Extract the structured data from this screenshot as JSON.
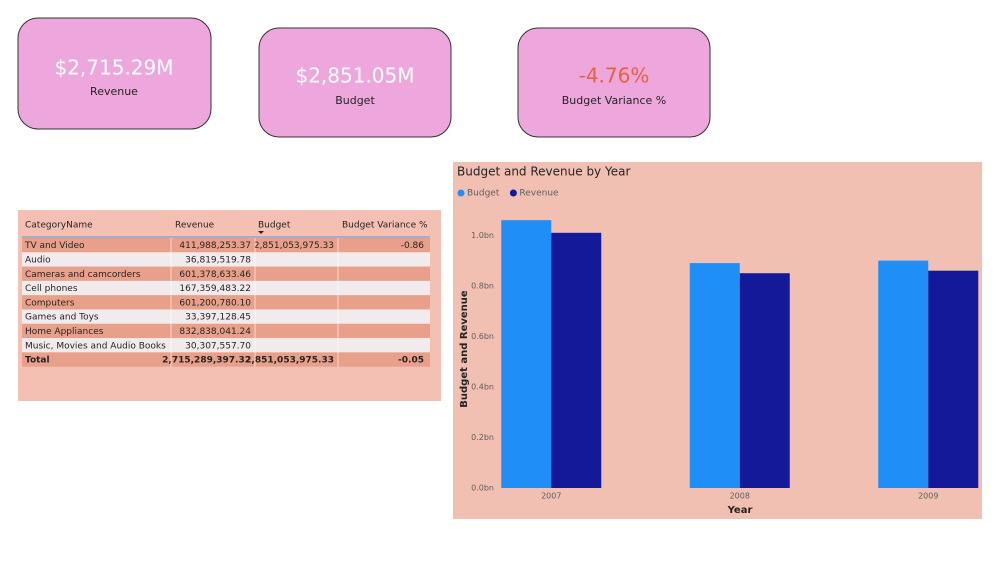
{
  "cards": [
    {
      "value": "$2,715.29M",
      "label": "Revenue"
    },
    {
      "value": "$2,851.05M",
      "label": "Budget"
    },
    {
      "value": "-4.76%",
      "label": "Budget Variance %"
    }
  ],
  "table": {
    "columns": [
      "CategoryName",
      "Revenue",
      "Budget",
      "Budget Variance %"
    ],
    "rows": [
      [
        "TV and Video",
        "411,988,253.37",
        "2,851,053,975.33",
        "-0.86"
      ],
      [
        "Audio",
        "36,819,519.78",
        null,
        null
      ],
      [
        "Cameras and camcorders",
        "601,378,633.46",
        null,
        null
      ],
      [
        "Cell phones",
        "167,359,483.22",
        null,
        null
      ],
      [
        "Computers",
        "601,200,780.10",
        null,
        null
      ],
      [
        "Games and Toys",
        "33,397,128.45",
        null,
        null
      ],
      [
        "Home Appliances",
        "832,838,041.24",
        null,
        null
      ],
      [
        "Music, Movies and Audio Books",
        "30,307,557.70",
        null,
        null
      ]
    ],
    "total": [
      "Total",
      "2,715,289,397.32",
      "2,851,053,975.33",
      "-0.05"
    ]
  },
  "chart_data": {
    "type": "bar",
    "title": "Budget and Revenue by Year",
    "x_label": "Year",
    "y_label": "Budget and Revenue",
    "categories": [
      "2007",
      "2008",
      "2009"
    ],
    "series": [
      {
        "name": "Budget",
        "color": "#1f8ff7",
        "values": [
          1.06,
          0.89,
          0.9
        ]
      },
      {
        "name": "Revenue",
        "color": "#14199a",
        "values": [
          1.01,
          0.85,
          0.86
        ]
      }
    ],
    "ylim": [
      0,
      1.12
    ],
    "yticks": [
      {
        "value": 0,
        "label": "0.0bn"
      },
      {
        "value": 0.2,
        "label": "0.2bn"
      },
      {
        "value": 0.4,
        "label": "0.4bn"
      },
      {
        "value": 0.6,
        "label": "0.6bn"
      },
      {
        "value": 0.8,
        "label": "0.8bn"
      },
      {
        "value": 1.0,
        "label": "1.0bn"
      }
    ],
    "legend": "top-left"
  }
}
